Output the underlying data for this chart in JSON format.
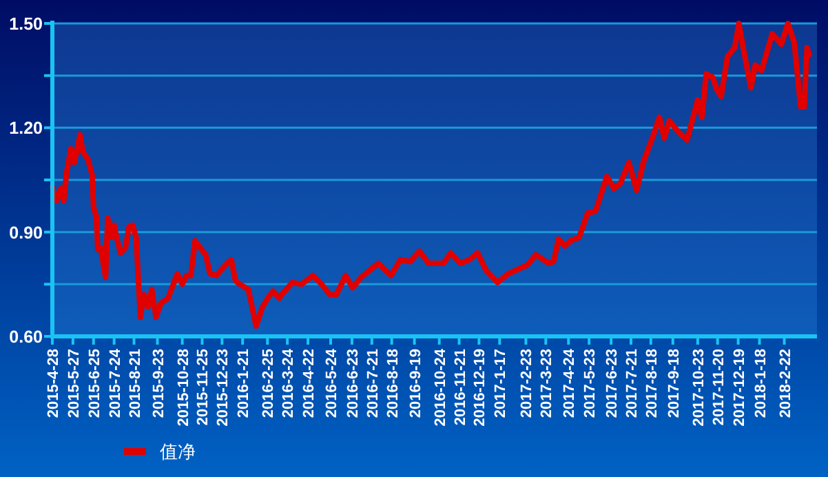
{
  "chart_data": {
    "type": "line",
    "legend": "bottom left",
    "grid": "y",
    "xlim": [
      "2015-04-28",
      "2018-04-09"
    ],
    "xticks": [
      {
        "value": "2015-04-28",
        "label": "2015-4-28"
      },
      {
        "value": "2015-05-27",
        "label": "2015-5-27"
      },
      {
        "value": "2015-06-25",
        "label": "2015-6-25"
      },
      {
        "value": "2015-07-24",
        "label": "2015-7-24"
      },
      {
        "value": "2015-08-21",
        "label": "2015-8-21"
      },
      {
        "value": "2015-09-23",
        "label": "2015-9-23"
      },
      {
        "value": "2015-10-28",
        "label": "2015-10-28"
      },
      {
        "value": "2015-11-25",
        "label": "2015-11-25"
      },
      {
        "value": "2015-12-23",
        "label": "2015-12-23"
      },
      {
        "value": "2016-01-21",
        "label": "2016-1-21"
      },
      {
        "value": "2016-02-25",
        "label": "2016-2-25"
      },
      {
        "value": "2016-03-24",
        "label": "2016-3-24"
      },
      {
        "value": "2016-04-22",
        "label": "2016-4-22"
      },
      {
        "value": "2016-05-24",
        "label": "2016-5-24"
      },
      {
        "value": "2016-06-23",
        "label": "2016-6-23"
      },
      {
        "value": "2016-07-21",
        "label": "2016-7-21"
      },
      {
        "value": "2016-08-18",
        "label": "2016-8-18"
      },
      {
        "value": "2016-09-19",
        "label": "2016-9-19"
      },
      {
        "value": "2016-10-24",
        "label": "2016-10-24"
      },
      {
        "value": "2016-11-21",
        "label": "2016-11-21"
      },
      {
        "value": "2016-12-19",
        "label": "2016-12-19"
      },
      {
        "value": "2017-01-17",
        "label": "2017-1-17"
      },
      {
        "value": "2017-02-23",
        "label": "2017-2-23"
      },
      {
        "value": "2017-03-23",
        "label": "2017-3-23"
      },
      {
        "value": "2017-04-24",
        "label": "2017-4-24"
      },
      {
        "value": "2017-05-23",
        "label": "2017-5-23"
      },
      {
        "value": "2017-06-23",
        "label": "2017-6-23"
      },
      {
        "value": "2017-07-21",
        "label": "2017-7-21"
      },
      {
        "value": "2017-08-18",
        "label": "2017-8-18"
      },
      {
        "value": "2017-09-18",
        "label": "2017-9-18"
      },
      {
        "value": "2017-10-23",
        "label": "2017-10-23"
      },
      {
        "value": "2017-11-20",
        "label": "2017-11-20"
      },
      {
        "value": "2017-12-19",
        "label": "2017-12-19"
      },
      {
        "value": "2018-01-18",
        "label": "2018-1-18"
      },
      {
        "value": "2018-02-22",
        "label": "2018-2-22"
      }
    ],
    "ylim": [
      0.6,
      1.5
    ],
    "yticks": [
      {
        "value": 0.6,
        "label": "0.60"
      },
      {
        "value": 0.75,
        "label": null
      },
      {
        "value": 0.9,
        "label": "0.90"
      },
      {
        "value": 1.05,
        "label": null
      },
      {
        "value": 1.2,
        "label": "1.20"
      },
      {
        "value": 1.35,
        "label": null
      },
      {
        "value": 1.5,
        "label": "1.50"
      }
    ],
    "series": [
      {
        "name": "值净",
        "color": "#e00000",
        "x": [
          "2015-04-28",
          "2015-05-04",
          "2015-05-10",
          "2015-05-14",
          "2015-05-18",
          "2015-05-24",
          "2015-05-29",
          "2015-06-06",
          "2015-06-10",
          "2015-06-17",
          "2015-06-23",
          "2015-06-25",
          "2015-06-29",
          "2015-07-01",
          "2015-07-05",
          "2015-07-12",
          "2015-07-15",
          "2015-07-20",
          "2015-07-24",
          "2015-07-28",
          "2015-08-02",
          "2015-08-09",
          "2015-08-14",
          "2015-08-19",
          "2015-08-24",
          "2015-08-30",
          "2015-09-04",
          "2015-09-10",
          "2015-09-15",
          "2015-09-21",
          "2015-09-28",
          "2015-10-08",
          "2015-10-21",
          "2015-10-28",
          "2015-11-03",
          "2015-11-09",
          "2015-11-15",
          "2015-11-24",
          "2015-11-30",
          "2015-12-06",
          "2015-12-15",
          "2015-12-30",
          "2016-01-05",
          "2016-01-11",
          "2016-01-17",
          "2016-01-29",
          "2016-02-09",
          "2016-02-18",
          "2016-02-27",
          "2016-03-04",
          "2016-03-13",
          "2016-03-16",
          "2016-03-31",
          "2016-04-13",
          "2016-04-29",
          "2016-05-09",
          "2016-05-23",
          "2016-06-01",
          "2016-06-14",
          "2016-06-24",
          "2016-07-06",
          "2016-07-18",
          "2016-07-30",
          "2016-08-17",
          "2016-08-30",
          "2016-09-13",
          "2016-09-26",
          "2016-10-09",
          "2016-10-30",
          "2016-11-09",
          "2016-11-23",
          "2016-12-05",
          "2016-12-17",
          "2016-12-29",
          "2017-01-14",
          "2017-01-29",
          "2017-02-14",
          "2017-02-25",
          "2017-03-09",
          "2017-03-27",
          "2017-04-03",
          "2017-04-10",
          "2017-04-19",
          "2017-04-27",
          "2017-05-09",
          "2017-05-21",
          "2017-06-01",
          "2017-06-17",
          "2017-06-27",
          "2017-07-06",
          "2017-07-18",
          "2017-07-29",
          "2017-08-08",
          "2017-08-20",
          "2017-08-30",
          "2017-09-06",
          "2017-09-13",
          "2017-09-27",
          "2017-10-08",
          "2017-10-23",
          "2017-10-29",
          "2017-11-04",
          "2017-11-13",
          "2017-11-19",
          "2017-11-25",
          "2017-12-04",
          "2017-12-14",
          "2017-12-20",
          "2017-12-27",
          "2018-01-06",
          "2018-01-12",
          "2018-01-21",
          "2018-02-05",
          "2018-02-18",
          "2018-02-27",
          "2018-03-08",
          "2018-03-17",
          "2018-03-22",
          "2018-03-26",
          "2018-03-29"
        ],
        "values": [
          1.03,
          0.99,
          1.025,
          0.99,
          1.07,
          1.14,
          1.1,
          1.18,
          1.13,
          1.11,
          1.065,
          0.97,
          0.945,
          0.85,
          0.855,
          0.77,
          0.94,
          0.885,
          0.92,
          0.88,
          0.84,
          0.855,
          0.915,
          0.92,
          0.885,
          0.655,
          0.72,
          0.685,
          0.735,
          0.655,
          0.695,
          0.71,
          0.78,
          0.75,
          0.775,
          0.775,
          0.875,
          0.85,
          0.835,
          0.78,
          0.775,
          0.81,
          0.82,
          0.76,
          0.75,
          0.735,
          0.63,
          0.685,
          0.715,
          0.73,
          0.71,
          0.72,
          0.755,
          0.75,
          0.775,
          0.755,
          0.72,
          0.72,
          0.775,
          0.74,
          0.77,
          0.79,
          0.81,
          0.775,
          0.82,
          0.815,
          0.845,
          0.81,
          0.81,
          0.84,
          0.81,
          0.82,
          0.84,
          0.79,
          0.755,
          0.78,
          0.795,
          0.805,
          0.835,
          0.81,
          0.815,
          0.88,
          0.86,
          0.875,
          0.885,
          0.955,
          0.96,
          1.06,
          1.025,
          1.04,
          1.1,
          1.02,
          1.105,
          1.17,
          1.23,
          1.17,
          1.22,
          1.185,
          1.165,
          1.28,
          1.23,
          1.355,
          1.345,
          1.31,
          1.29,
          1.405,
          1.43,
          1.5,
          1.42,
          1.315,
          1.38,
          1.365,
          1.47,
          1.44,
          1.5,
          1.445,
          1.26,
          1.26,
          1.43,
          1.41
        ]
      }
    ]
  }
}
